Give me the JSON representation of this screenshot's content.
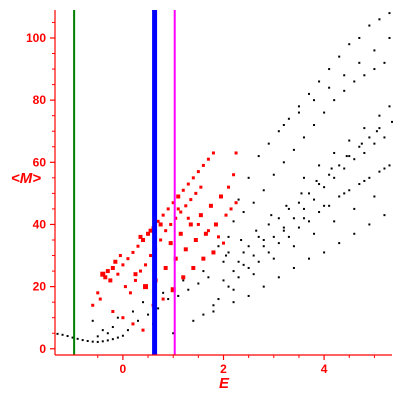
{
  "chart_data": {
    "type": "scatter",
    "title": "",
    "xlabel": "E",
    "ylabel": "<M>",
    "xlim": [
      -1.35,
      5.35
    ],
    "ylim": [
      -2,
      109
    ],
    "x_ticks": [
      0,
      2,
      4
    ],
    "y_ticks": [
      0,
      20,
      40,
      60,
      80,
      100
    ],
    "grid": false,
    "colors": {
      "axis": "#ff0000",
      "black_points": "#000000",
      "red_points": "#ff0000"
    },
    "vertical_lines": [
      {
        "x": -0.97,
        "color": "#008000",
        "width": 2
      },
      {
        "x": 0.63,
        "color": "#0000ff",
        "width": 5
      },
      {
        "x": 1.03,
        "color": "#ff00ff",
        "width": 2
      }
    ],
    "series_black": [
      [
        -1.3,
        4.8
      ],
      [
        -1.2,
        4.5
      ],
      [
        -1.1,
        4.1
      ],
      [
        -1.0,
        3.6
      ],
      [
        -0.9,
        3.2
      ],
      [
        -0.8,
        2.8
      ],
      [
        -0.7,
        2.5
      ],
      [
        -0.6,
        2.3
      ],
      [
        -0.5,
        2.2
      ],
      [
        -0.4,
        2.4
      ],
      [
        -0.3,
        2.7
      ],
      [
        -0.2,
        3.1
      ],
      [
        -0.1,
        3.6
      ],
      [
        0.0,
        4.2
      ],
      [
        -0.6,
        9
      ],
      [
        -0.4,
        6
      ],
      [
        -0.1,
        10
      ],
      [
        0.2,
        12
      ],
      [
        0.4,
        15
      ],
      [
        0.6,
        8
      ],
      [
        0.8,
        18
      ],
      [
        1.0,
        5
      ],
      [
        1.2,
        22
      ],
      [
        1.4,
        9
      ],
      [
        1.6,
        25
      ],
      [
        1.8,
        14
      ],
      [
        2.0,
        28
      ],
      [
        2.2,
        19
      ],
      [
        2.4,
        31
      ],
      [
        2.6,
        24
      ],
      [
        2.8,
        35
      ],
      [
        3.0,
        29
      ],
      [
        3.2,
        38
      ],
      [
        3.4,
        33
      ],
      [
        3.6,
        42
      ],
      [
        3.8,
        37
      ],
      [
        4.0,
        46
      ],
      [
        4.2,
        41
      ],
      [
        4.4,
        50
      ],
      [
        4.6,
        45
      ],
      [
        4.8,
        54
      ],
      [
        5.0,
        49
      ],
      [
        5.2,
        58
      ],
      [
        1.8,
        12
      ],
      [
        2.1,
        36
      ],
      [
        2.3,
        48
      ],
      [
        2.5,
        55
      ],
      [
        2.7,
        62
      ],
      [
        2.9,
        66
      ],
      [
        3.1,
        70
      ],
      [
        3.3,
        74
      ],
      [
        3.5,
        78
      ],
      [
        3.7,
        82
      ],
      [
        3.9,
        86
      ],
      [
        4.1,
        90
      ],
      [
        4.3,
        94
      ],
      [
        4.5,
        98
      ],
      [
        4.7,
        100
      ],
      [
        4.9,
        104
      ],
      [
        5.1,
        106
      ],
      [
        5.3,
        108
      ],
      [
        2.2,
        41
      ],
      [
        2.4,
        44
      ],
      [
        2.6,
        47
      ],
      [
        2.8,
        51
      ],
      [
        3.0,
        56
      ],
      [
        3.2,
        60
      ],
      [
        3.4,
        64
      ],
      [
        3.6,
        68
      ],
      [
        3.8,
        72
      ],
      [
        4.0,
        76
      ],
      [
        4.2,
        80
      ],
      [
        4.4,
        83
      ],
      [
        4.6,
        86
      ],
      [
        4.8,
        88
      ],
      [
        5.0,
        90
      ],
      [
        5.2,
        92
      ],
      [
        2.0,
        22
      ],
      [
        2.2,
        25
      ],
      [
        2.4,
        27
      ],
      [
        2.6,
        30
      ],
      [
        2.8,
        33
      ],
      [
        3.0,
        36
      ],
      [
        3.2,
        39
      ],
      [
        3.4,
        42
      ],
      [
        3.6,
        45
      ],
      [
        3.8,
        48
      ],
      [
        4.0,
        52
      ],
      [
        4.2,
        55
      ],
      [
        4.4,
        58
      ],
      [
        4.6,
        61
      ],
      [
        4.8,
        63
      ],
      [
        5.0,
        66
      ],
      [
        5.2,
        68
      ],
      [
        1.6,
        11
      ],
      [
        1.9,
        16
      ],
      [
        2.1,
        20
      ],
      [
        2.3,
        23
      ],
      [
        2.5,
        26
      ],
      [
        2.7,
        28
      ],
      [
        2.9,
        31
      ],
      [
        3.1,
        34
      ],
      [
        3.3,
        36
      ],
      [
        3.5,
        39
      ],
      [
        3.7,
        41
      ],
      [
        3.9,
        44
      ],
      [
        4.1,
        46
      ],
      [
        4.3,
        49
      ],
      [
        4.5,
        51
      ],
      [
        4.7,
        53
      ],
      [
        4.9,
        55
      ],
      [
        5.1,
        57
      ],
      [
        5.3,
        59
      ],
      [
        2.05,
        30
      ],
      [
        2.35,
        35
      ],
      [
        2.65,
        38
      ],
      [
        2.95,
        43
      ],
      [
        3.25,
        46
      ],
      [
        3.55,
        50
      ],
      [
        3.85,
        54
      ],
      [
        4.15,
        58
      ],
      [
        4.45,
        62
      ],
      [
        4.75,
        66
      ],
      [
        5.05,
        70
      ],
      [
        5.35,
        73
      ],
      [
        1.9,
        33
      ],
      [
        2.1,
        31
      ],
      [
        2.3,
        28
      ],
      [
        2.5,
        33
      ],
      [
        2.7,
        36
      ],
      [
        2.9,
        40
      ],
      [
        3.1,
        42
      ],
      [
        3.3,
        45
      ],
      [
        3.5,
        47
      ],
      [
        3.7,
        50
      ],
      [
        3.9,
        53
      ],
      [
        4.1,
        56
      ],
      [
        4.3,
        59
      ],
      [
        4.5,
        62
      ],
      [
        4.7,
        65
      ],
      [
        4.9,
        68
      ],
      [
        5.1,
        71
      ],
      [
        2.2,
        15
      ],
      [
        2.5,
        17
      ],
      [
        2.8,
        20
      ],
      [
        3.1,
        23
      ],
      [
        3.4,
        26
      ],
      [
        3.7,
        29
      ],
      [
        4.0,
        31
      ],
      [
        4.3,
        34
      ],
      [
        4.6,
        37
      ],
      [
        4.9,
        40
      ],
      [
        5.2,
        43
      ],
      [
        -0.5,
        4
      ],
      [
        -0.3,
        5
      ],
      [
        -0.2,
        7
      ],
      [
        0.1,
        6
      ],
      [
        0.3,
        9
      ],
      [
        0.5,
        11
      ],
      [
        0.7,
        13
      ],
      [
        0.9,
        16
      ],
      [
        1.1,
        17
      ],
      [
        1.3,
        19
      ],
      [
        1.5,
        21
      ],
      [
        1.7,
        23
      ],
      [
        3.6,
        55
      ],
      [
        3.9,
        59
      ],
      [
        4.2,
        63
      ],
      [
        4.5,
        67
      ],
      [
        4.8,
        71
      ],
      [
        5.1,
        75
      ],
      [
        5.3,
        78
      ],
      [
        3.2,
        72
      ],
      [
        3.5,
        76
      ],
      [
        3.8,
        80
      ],
      [
        4.1,
        84
      ],
      [
        4.4,
        88
      ],
      [
        4.7,
        92
      ],
      [
        5.0,
        96
      ],
      [
        5.3,
        100
      ]
    ],
    "series_red": [
      [
        -0.35,
        23,
        4
      ],
      [
        -0.3,
        25,
        4
      ],
      [
        -0.2,
        26,
        4
      ],
      [
        -0.1,
        24,
        3
      ],
      [
        0.0,
        27,
        3
      ],
      [
        0.1,
        29,
        3
      ],
      [
        0.2,
        31,
        3
      ],
      [
        0.3,
        33,
        3
      ],
      [
        0.4,
        35,
        4
      ],
      [
        0.5,
        37,
        4
      ],
      [
        0.6,
        39,
        3
      ],
      [
        0.7,
        41,
        3
      ],
      [
        0.8,
        43,
        3
      ],
      [
        0.9,
        45,
        3
      ],
      [
        1.0,
        47,
        3
      ],
      [
        1.1,
        49,
        4
      ],
      [
        1.2,
        51,
        3
      ],
      [
        1.3,
        53,
        3
      ],
      [
        1.4,
        55,
        3
      ],
      [
        1.5,
        57,
        3
      ],
      [
        1.6,
        59,
        3
      ],
      [
        1.7,
        61,
        3
      ],
      [
        1.8,
        63,
        3
      ],
      [
        -0.4,
        24,
        5
      ],
      [
        -0.25,
        22,
        4
      ],
      [
        -0.15,
        28,
        4
      ],
      [
        -0.05,
        30,
        3
      ],
      [
        0.05,
        20,
        3
      ],
      [
        0.15,
        18,
        3
      ],
      [
        0.25,
        22,
        3
      ],
      [
        0.35,
        25,
        3
      ],
      [
        0.45,
        27,
        3
      ],
      [
        0.55,
        30,
        3
      ],
      [
        0.65,
        32,
        3
      ],
      [
        0.75,
        35,
        3
      ],
      [
        0.85,
        38,
        3
      ],
      [
        0.95,
        40,
        3
      ],
      [
        1.05,
        42,
        3
      ],
      [
        1.15,
        44,
        3
      ],
      [
        1.25,
        46,
        3
      ],
      [
        1.35,
        48,
        3
      ],
      [
        1.45,
        50,
        3
      ],
      [
        1.55,
        52,
        3
      ],
      [
        -0.5,
        18,
        3
      ],
      [
        -0.6,
        14,
        3
      ],
      [
        -0.45,
        16,
        3
      ],
      [
        -0.2,
        12,
        3
      ],
      [
        0.0,
        10,
        3
      ],
      [
        0.2,
        8,
        3
      ],
      [
        0.4,
        6,
        3
      ],
      [
        0.6,
        14,
        3
      ],
      [
        0.8,
        16,
        3
      ],
      [
        1.0,
        19,
        5
      ],
      [
        1.2,
        23,
        4
      ],
      [
        1.4,
        26,
        4
      ],
      [
        1.6,
        29,
        4
      ],
      [
        1.8,
        31,
        4
      ],
      [
        2.0,
        34,
        3
      ],
      [
        1.9,
        36,
        3
      ],
      [
        1.7,
        38,
        3
      ],
      [
        1.5,
        40,
        3
      ],
      [
        1.3,
        42,
        3
      ],
      [
        1.1,
        45,
        3
      ],
      [
        0.25,
        24,
        4
      ],
      [
        0.45,
        20,
        5
      ],
      [
        0.65,
        22,
        4
      ],
      [
        0.85,
        26,
        4
      ],
      [
        1.05,
        29,
        4
      ],
      [
        1.25,
        32,
        4
      ],
      [
        1.45,
        35,
        4
      ],
      [
        1.65,
        37,
        4
      ],
      [
        1.85,
        40,
        4
      ],
      [
        2.05,
        43,
        3
      ],
      [
        2.15,
        45,
        3
      ],
      [
        2.25,
        47,
        3
      ],
      [
        0.35,
        36,
        4
      ],
      [
        0.55,
        38,
        4
      ],
      [
        0.75,
        40,
        4
      ],
      [
        0.95,
        34,
        4
      ],
      [
        1.15,
        37,
        4
      ],
      [
        1.35,
        40,
        4
      ],
      [
        1.55,
        43,
        4
      ],
      [
        1.75,
        46,
        4
      ],
      [
        1.95,
        49,
        4
      ],
      [
        2.1,
        52,
        3
      ],
      [
        2.2,
        56,
        3
      ],
      [
        2.25,
        63,
        3
      ]
    ]
  }
}
